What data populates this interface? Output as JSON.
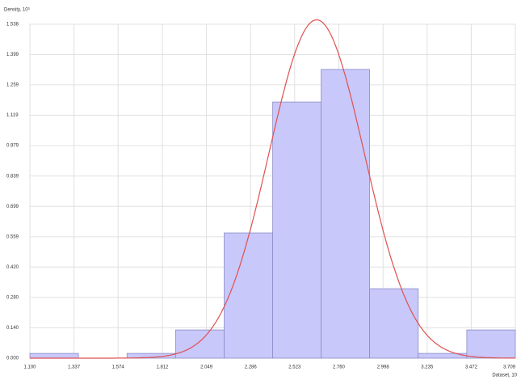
{
  "chart_data": {
    "type": "histogram",
    "y_label": "Density, 10³",
    "x_label": "Dataset, 10",
    "bins": [
      1.1,
      1.361,
      1.622,
      1.883,
      2.144,
      2.405,
      2.665,
      2.926,
      3.187,
      3.448,
      3.709
    ],
    "values": [
      0.022,
      0,
      0.022,
      0.13,
      0.577,
      1.18,
      1.33,
      0.32,
      0.022,
      0.13
    ],
    "color": "#c8c8fa",
    "fit": {
      "type": "normal",
      "mean": 2.641,
      "sd": 0.256,
      "color": "#e05050"
    },
    "xlim": [
      1.1,
      3.709
    ],
    "ylim": [
      0,
      1.538
    ],
    "xticks": [
      {
        "value": 1.1,
        "label": "1.100"
      },
      1.337,
      1.574,
      1.812,
      2.049,
      2.286,
      2.523,
      {
        "value": 2.76,
        "label": "2.760"
      },
      2.998,
      3.235,
      3.472,
      3.709
    ],
    "yticks": [
      {
        "value": 0,
        "label": "0.000"
      },
      {
        "value": 0.14,
        "label": "0.140"
      },
      {
        "value": 0.28,
        "label": "0.280"
      },
      {
        "value": 0.42,
        "label": "0.420"
      },
      0.559,
      0.699,
      0.839,
      0.979,
      1.119,
      1.259,
      1.399,
      1.538
    ],
    "grid": true
  }
}
